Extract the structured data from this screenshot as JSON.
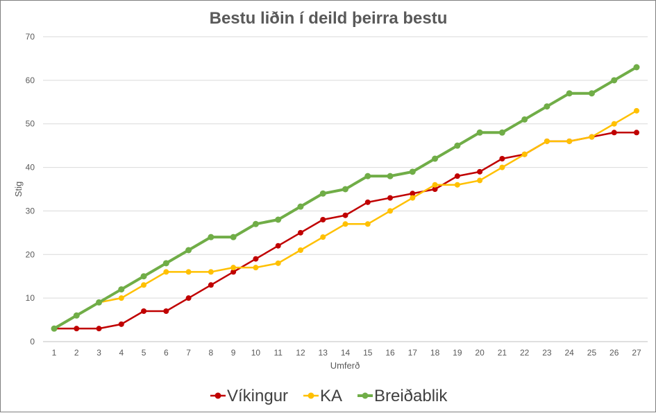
{
  "chart_data": {
    "type": "line",
    "title": "Bestu liðin í deild þeirra bestu",
    "xlabel": "Umferð",
    "ylabel": "Stig",
    "ylim": [
      0,
      70
    ],
    "yticks": [
      0,
      10,
      20,
      30,
      40,
      50,
      60,
      70
    ],
    "categories": [
      "1",
      "2",
      "3",
      "4",
      "5",
      "6",
      "7",
      "8",
      "9",
      "10",
      "11",
      "12",
      "13",
      "14",
      "15",
      "16",
      "17",
      "18",
      "19",
      "20",
      "21",
      "22",
      "23",
      "24",
      "25",
      "26",
      "27"
    ],
    "grid": true,
    "legend_position": "bottom",
    "series": [
      {
        "name": "Víkingur",
        "color": "#c00000",
        "values": [
          3,
          3,
          3,
          4,
          7,
          7,
          10,
          13,
          16,
          19,
          22,
          25,
          28,
          29,
          32,
          33,
          34,
          35,
          38,
          39,
          42,
          43,
          46,
          46,
          47,
          48,
          48
        ]
      },
      {
        "name": "KA",
        "color": "#ffc000",
        "values": [
          3,
          6,
          9,
          10,
          13,
          16,
          16,
          16,
          17,
          17,
          18,
          21,
          24,
          27,
          27,
          30,
          33,
          36,
          36,
          37,
          40,
          43,
          46,
          46,
          47,
          50,
          53
        ]
      },
      {
        "name": "Breiðablik",
        "color": "#70ad47",
        "values": [
          3,
          6,
          9,
          12,
          15,
          18,
          21,
          24,
          24,
          27,
          28,
          31,
          34,
          35,
          38,
          38,
          39,
          42,
          45,
          48,
          48,
          51,
          54,
          57,
          57,
          60,
          63
        ]
      }
    ]
  }
}
